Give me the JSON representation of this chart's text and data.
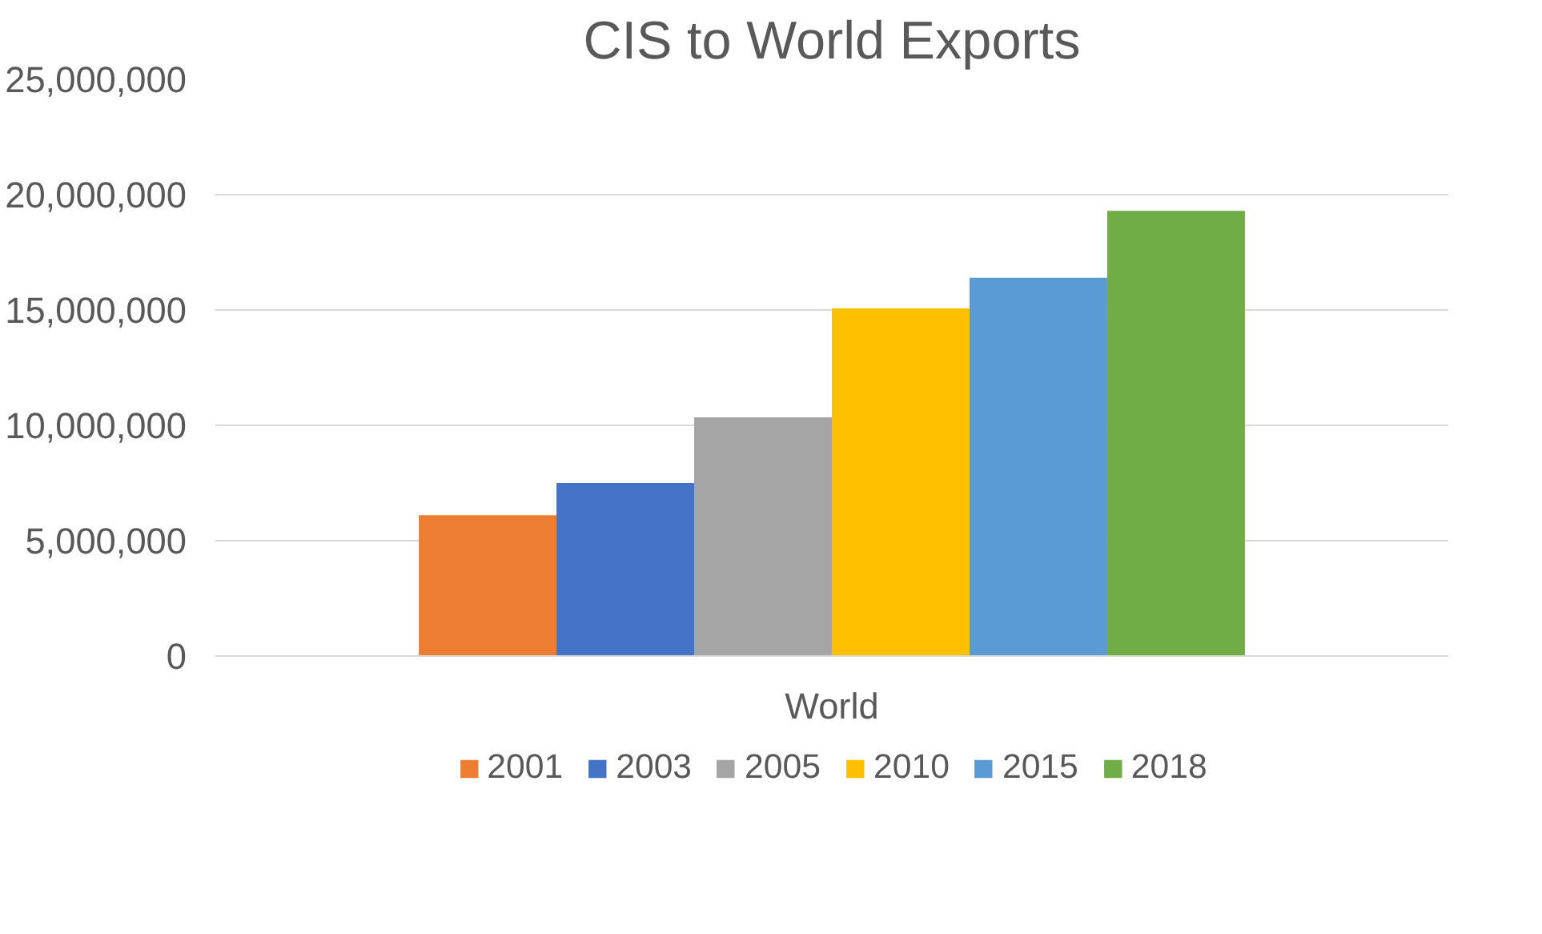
{
  "chart_data": {
    "type": "bar",
    "title": "CIS to World Exports",
    "categories": [
      "World"
    ],
    "series": [
      {
        "name": "2001",
        "color": "#ed7d31",
        "values": [
          6100000
        ]
      },
      {
        "name": "2003",
        "color": "#4472c4",
        "values": [
          7500000
        ]
      },
      {
        "name": "2005",
        "color": "#a5a5a5",
        "values": [
          10350000
        ]
      },
      {
        "name": "2010",
        "color": "#ffc000",
        "values": [
          15070000
        ]
      },
      {
        "name": "2015",
        "color": "#5b9bd5",
        "values": [
          16400000
        ]
      },
      {
        "name": "2018",
        "color": "#70ad47",
        "values": [
          19300000
        ]
      }
    ],
    "ylim": [
      0,
      25000000
    ],
    "yticks": [
      0,
      {
        "value": 5000000,
        "label": "5,000,000"
      },
      {
        "value": 10000000,
        "label": "10,000,000"
      },
      {
        "value": 15000000,
        "label": "15,000,000"
      },
      {
        "value": 20000000,
        "label": "20,000,000"
      },
      {
        "value": 25000000,
        "label": "25,000,000"
      }
    ],
    "grid": "y",
    "legend": "bottom"
  }
}
